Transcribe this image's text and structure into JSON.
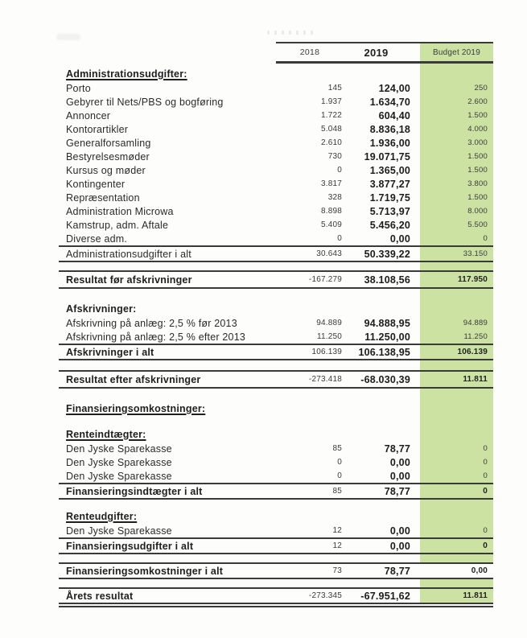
{
  "header": {
    "col_2018": "2018",
    "col_2019": "2019",
    "col_budget": "Budget 2019"
  },
  "colors": {
    "budget_highlight": "#cbe2a3",
    "rule": "#3a3a38",
    "text": "#262626"
  },
  "rows": [
    {
      "kind": "gap",
      "h": 4
    },
    {
      "kind": "section",
      "label": "Administrationsudgifter:",
      "underline": true
    },
    {
      "kind": "item",
      "label": "Porto",
      "v2018": "145",
      "v2019": "124,00",
      "budget": "250"
    },
    {
      "kind": "item",
      "label": "Gebyrer til Nets/PBS og bogføring",
      "v2018": "1.937",
      "v2019": "1.634,70",
      "budget": "2.600"
    },
    {
      "kind": "item",
      "label": "Annoncer",
      "v2018": "1.722",
      "v2019": "604,40",
      "budget": "1.500"
    },
    {
      "kind": "item",
      "label": "Kontorartikler",
      "v2018": "5.048",
      "v2019": "8.836,18",
      "budget": "4.000"
    },
    {
      "kind": "item",
      "label": "Generalforsamling",
      "v2018": "2.610",
      "v2019": "1.936,00",
      "budget": "3.000"
    },
    {
      "kind": "item",
      "label": "Bestyrelsesmøder",
      "v2018": "730",
      "v2019": "19.071,75",
      "budget": "1.500"
    },
    {
      "kind": "item",
      "label": "Kursus og møder",
      "v2018": "0",
      "v2019": "1.365,00",
      "budget": "1.500"
    },
    {
      "kind": "item",
      "label": "Kontingenter",
      "v2018": "3.817",
      "v2019": "3.877,27",
      "budget": "3.800"
    },
    {
      "kind": "item",
      "label": "Repræsentation",
      "v2018": "328",
      "v2019": "1.719,75",
      "budget": "1.500"
    },
    {
      "kind": "item",
      "label": "Administration Microwa",
      "v2018": "8.898",
      "v2019": "5.713,97",
      "budget": "8.000"
    },
    {
      "kind": "item",
      "label": "Kamstrup, adm. Aftale",
      "v2018": "5.409",
      "v2019": "5.456,20",
      "budget": "5.500"
    },
    {
      "kind": "item",
      "label": "Diverse adm.",
      "v2018": "0",
      "v2019": "0,00",
      "budget": "0"
    },
    {
      "kind": "total",
      "label": "Administrationsudgifter i alt",
      "bold": false,
      "v2018": "30.643",
      "v2019": "50.339,22",
      "budget": "33.150",
      "rule_above": true,
      "rule_below": true
    },
    {
      "kind": "gap",
      "h": 10
    },
    {
      "kind": "total",
      "label": "Resultat før afskrivninger",
      "bold": true,
      "h": 19,
      "v2018": "-167.279",
      "v2019": "38.108,56",
      "budget": "117.950",
      "rule_above": true,
      "rule_below": true
    },
    {
      "kind": "gap",
      "h": 16
    },
    {
      "kind": "section",
      "label": "Afskrivninger:",
      "underline": false
    },
    {
      "kind": "item",
      "label": "Afskrivning på anlæg: 2,5 % før 2013",
      "v2018": "94.889",
      "v2019": "94.888,95",
      "budget": "94.889"
    },
    {
      "kind": "item",
      "label": "Afskrivning på anlæg: 2,5 % efter 2013",
      "v2018": "11.250",
      "v2019": "11.250,00",
      "budget": "11.250"
    },
    {
      "kind": "total",
      "label": "Afskrivninger i alt",
      "bold": true,
      "v2018": "106.139",
      "v2019": "106.138,95",
      "budget": "106.139",
      "rule_above": true,
      "rule_below": true
    },
    {
      "kind": "gap",
      "h": 12
    },
    {
      "kind": "total",
      "label": "Resultat efter afskrivninger",
      "bold": true,
      "h": 19,
      "v2018": "-273.418",
      "v2019": "-68.030,39",
      "budget": "11.811",
      "rule_above": true,
      "rule_below": true
    },
    {
      "kind": "gap",
      "h": 16
    },
    {
      "kind": "section",
      "label": "Finansieringsomkostninger:",
      "underline": true
    },
    {
      "kind": "gap",
      "h": 14
    },
    {
      "kind": "section",
      "label": "Renteindtægter:",
      "underline": true
    },
    {
      "kind": "item",
      "label": "Den Jyske Sparekasse",
      "v2018": "85",
      "v2019": "78,77",
      "budget": "0"
    },
    {
      "kind": "item",
      "label": "Den Jyske Sparekasse",
      "v2018": "0",
      "v2019": "0,00",
      "budget": "0"
    },
    {
      "kind": "item",
      "label": "Den Jyske Sparekasse",
      "v2018": "0",
      "v2019": "0,00",
      "budget": "0"
    },
    {
      "kind": "total",
      "label": "Finansieringsindtægter i alt",
      "bold": true,
      "v2018": "85",
      "v2019": "78,77",
      "budget": "0",
      "rule_above": true,
      "rule_below": true
    },
    {
      "kind": "gap",
      "h": 12
    },
    {
      "kind": "section",
      "label": "Renteudgifter:",
      "underline": true
    },
    {
      "kind": "item",
      "label": "Den Jyske Sparekasse",
      "v2018": "12",
      "v2019": "0,00",
      "budget": "0"
    },
    {
      "kind": "total",
      "label": "Finansieringsudgifter i alt",
      "bold": true,
      "v2018": "12",
      "v2019": "0,00",
      "budget": "0",
      "rule_above": true,
      "rule_below": true
    },
    {
      "kind": "gap",
      "h": 10
    },
    {
      "kind": "total",
      "label": "Finansieringsomkostninger i alt",
      "bold": true,
      "green": false,
      "v2018": "73",
      "v2019": "78,77",
      "budget": "0,00",
      "rule_above": true,
      "rule_below": true
    },
    {
      "kind": "gap",
      "h": 10
    },
    {
      "kind": "total",
      "label": "Årets resultat",
      "bold": true,
      "v2018": "-273.345",
      "v2019": "-67.951,62",
      "budget": "11.811",
      "rule_above": true,
      "rule_below": "double"
    }
  ]
}
